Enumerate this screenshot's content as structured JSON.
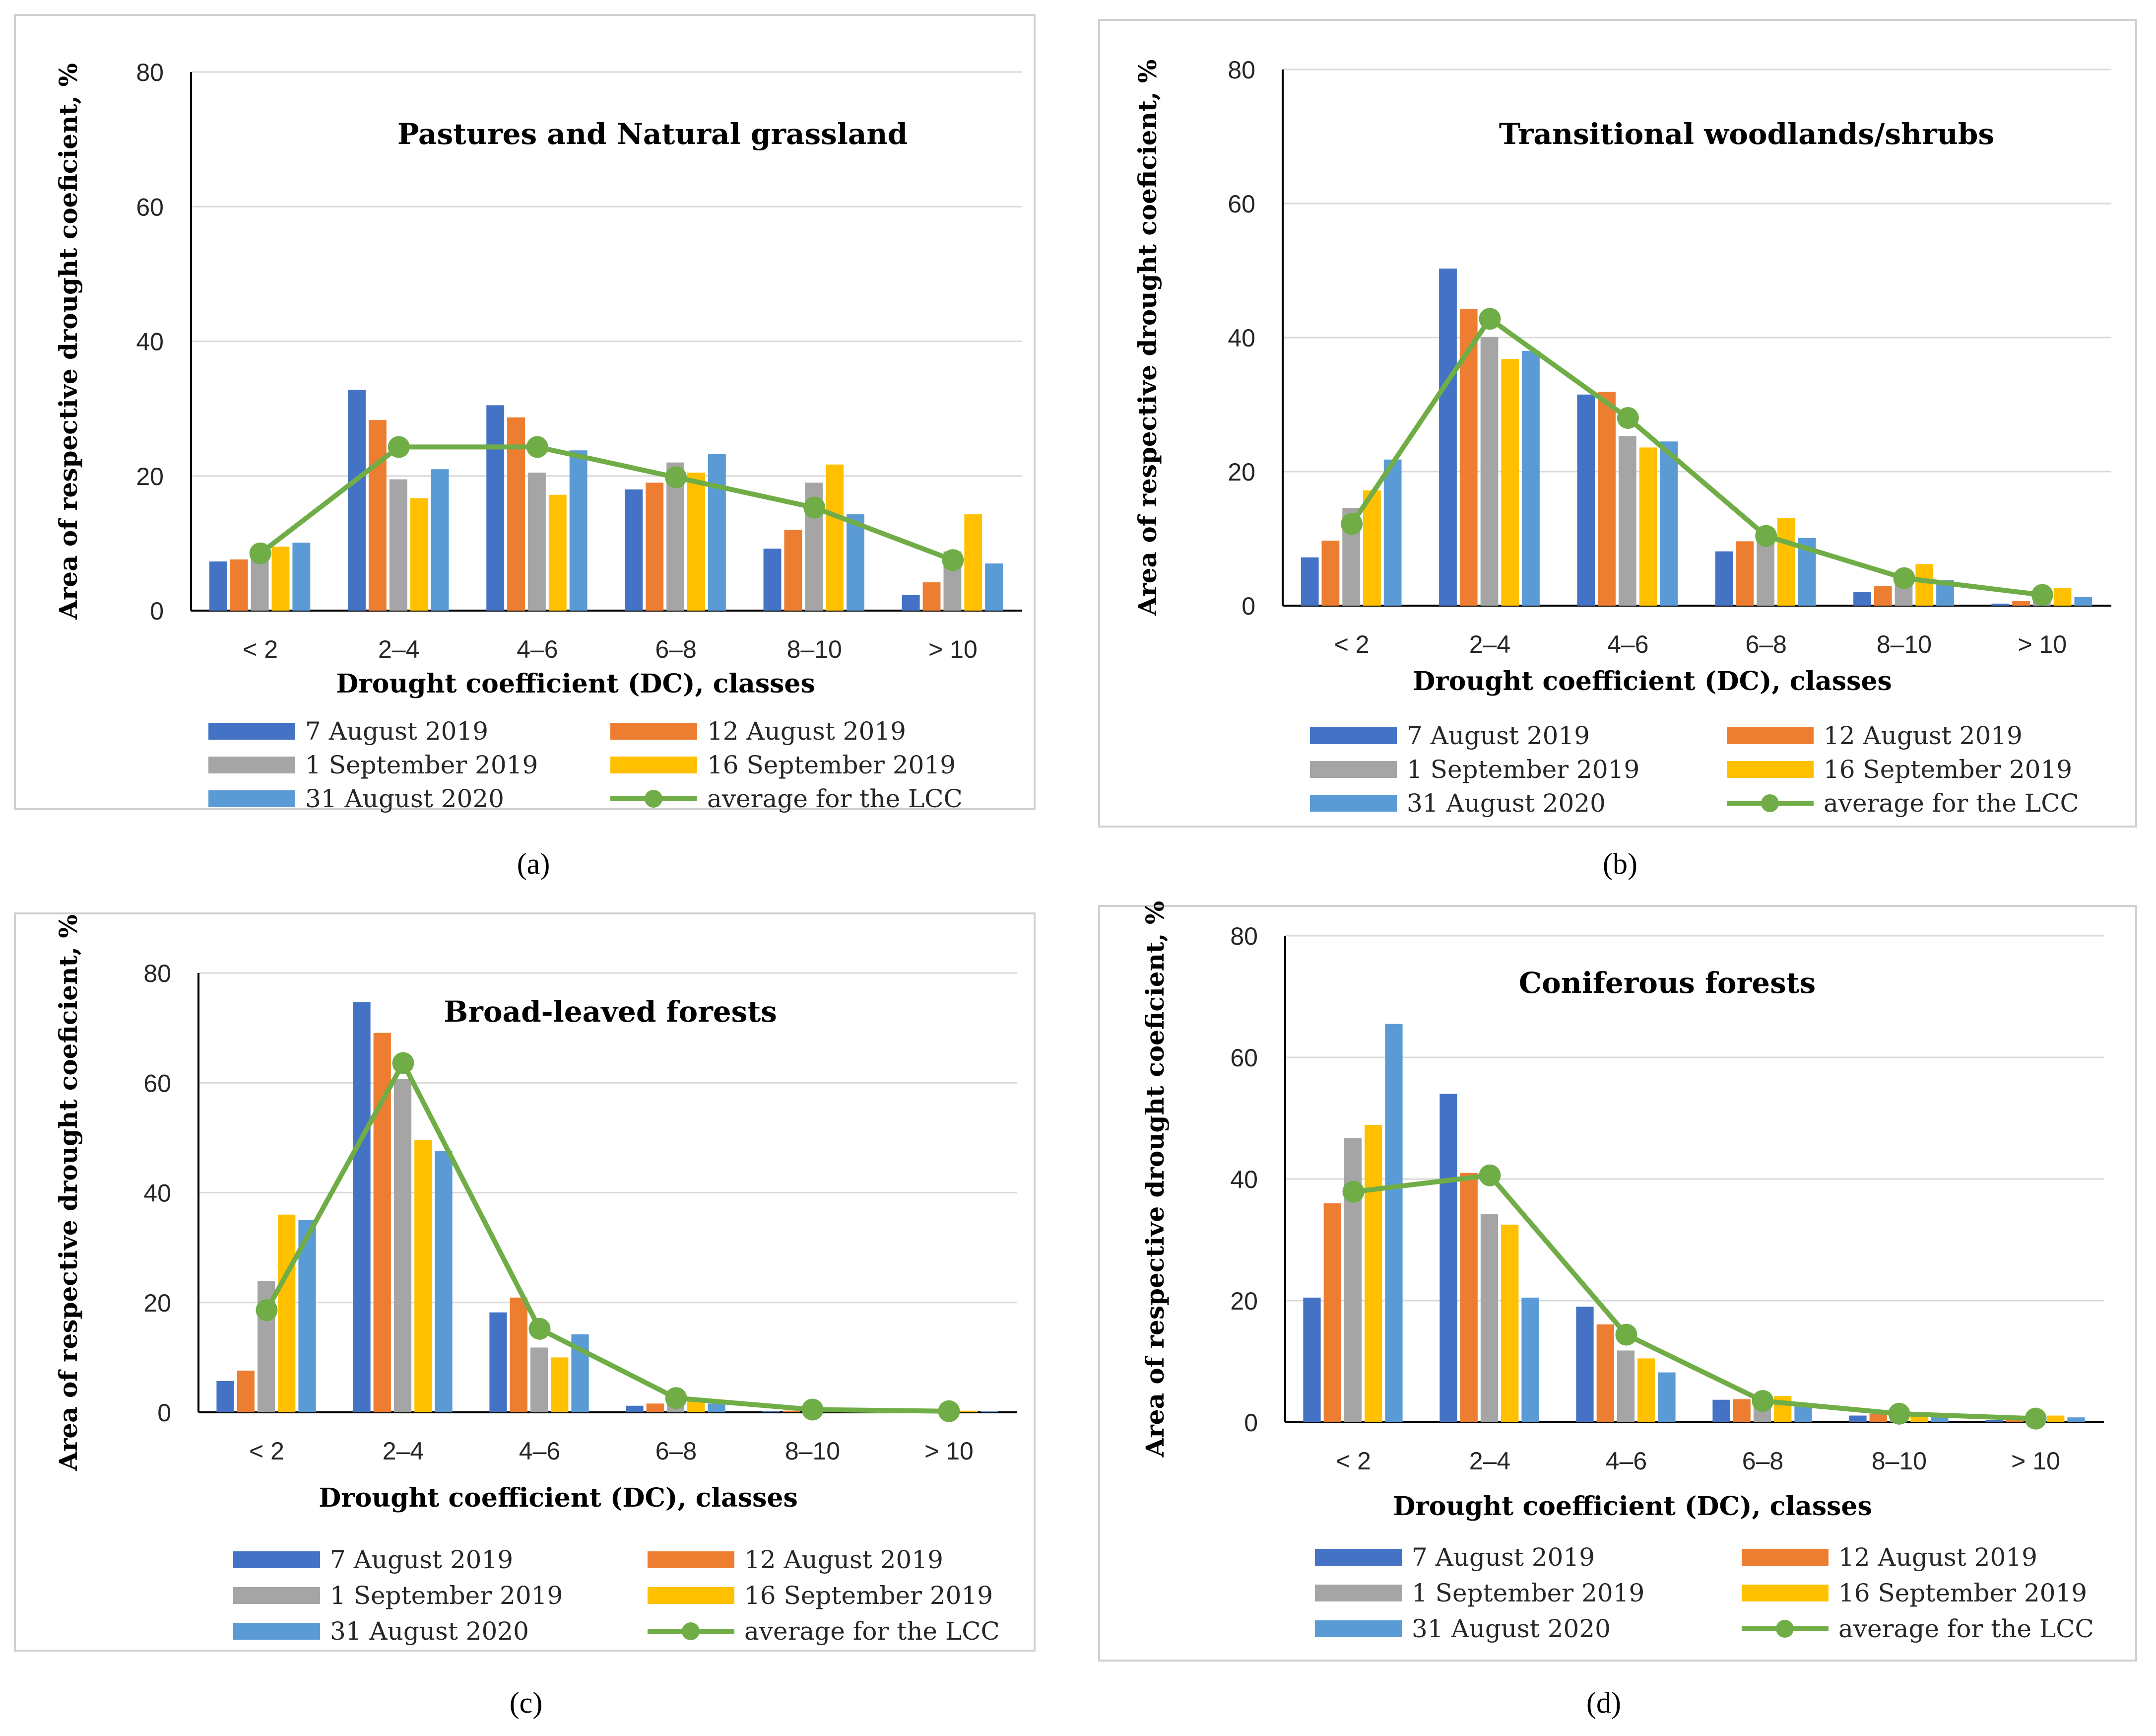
{
  "figure": {
    "legend_labels": [
      "7 August 2019",
      "12 August 2019",
      "1 September 2019",
      "16 September 2019",
      "31 August 2020",
      "average for the LCC"
    ],
    "series_colors": [
      "#4472C4",
      "#ED7D31",
      "#A5A5A5",
      "#FFC000",
      "#5B9BD5",
      "#70AD47"
    ]
  },
  "chart_data": [
    {
      "panel": "a",
      "type": "bar",
      "title": "Pastures and Natural grassland",
      "xlabel": "Drought coefficient (DC), classes",
      "ylabel": "Area of respective drought coeficient, %",
      "categories": [
        "< 2",
        "2–4",
        "4–6",
        "6–8",
        "8–10",
        "> 10"
      ],
      "ylim": [
        0,
        80
      ],
      "yticks": [
        "0",
        "20",
        "40",
        "60",
        "80"
      ],
      "series": [
        {
          "name": "7 August 2019",
          "values": [
            7.3,
            32.8,
            30.5,
            18,
            9.2,
            2.3
          ]
        },
        {
          "name": "12 August 2019",
          "values": [
            7.6,
            28.3,
            28.7,
            19,
            12,
            4.2
          ]
        },
        {
          "name": "1 September 2019",
          "values": [
            8.5,
            19.5,
            20.5,
            22,
            19,
            8.8
          ]
        },
        {
          "name": "16 September 2019",
          "values": [
            9.5,
            16.7,
            17.2,
            20.5,
            21.7,
            14.3
          ]
        },
        {
          "name": "31 August 2020",
          "values": [
            10.1,
            21,
            23.8,
            23.3,
            14.3,
            7
          ]
        }
      ],
      "line": {
        "name": "average for the LCC",
        "values": [
          8.5,
          24.3,
          24.3,
          19.8,
          15.3,
          7.5
        ]
      }
    },
    {
      "panel": "b",
      "type": "bar",
      "title": "Transitional woodlands/shrubs",
      "xlabel": "Drought coefficient (DC), classes",
      "ylabel": "Area of respective drought coeficient, %",
      "categories": [
        "< 2",
        "2–4",
        "4–6",
        "6–8",
        "8–10",
        "> 10"
      ],
      "ylim": [
        0,
        80
      ],
      "yticks": [
        "0",
        "20",
        "40",
        "60",
        "80"
      ],
      "series": [
        {
          "name": "7 August 2019",
          "values": [
            7.2,
            50.3,
            31.5,
            8.1,
            2,
            0.3
          ]
        },
        {
          "name": "12 August 2019",
          "values": [
            9.7,
            44.3,
            31.9,
            9.6,
            2.9,
            0.7
          ]
        },
        {
          "name": "1 September 2019",
          "values": [
            14.6,
            40.1,
            25.3,
            9.8,
            3.7,
            1.3
          ]
        },
        {
          "name": "16 September 2019",
          "values": [
            17.2,
            36.8,
            23.6,
            13.1,
            6.2,
            2.6
          ]
        },
        {
          "name": "31 August 2020",
          "values": [
            21.8,
            38,
            24.5,
            10.1,
            3.8,
            1.3
          ]
        }
      ],
      "line": {
        "name": "average for the LCC",
        "values": [
          12.2,
          42.8,
          28,
          10.4,
          4.1,
          1.6
        ]
      }
    },
    {
      "panel": "c",
      "type": "bar",
      "title": "Broad-leaved forests",
      "xlabel": "Drought coefficient (DC), classes",
      "ylabel": "Area of respective drought coeficient, %",
      "categories": [
        "< 2",
        "2–4",
        "4–6",
        "6–8",
        "8–10",
        "> 10"
      ],
      "ylim": [
        0,
        80
      ],
      "yticks": [
        "0",
        "20",
        "40",
        "60",
        "80"
      ],
      "series": [
        {
          "name": "7 August 2019",
          "values": [
            5.7,
            74.7,
            18.2,
            1.2,
            0.2,
            0
          ]
        },
        {
          "name": "12 August 2019",
          "values": [
            7.6,
            69.1,
            20.9,
            1.6,
            0.3,
            0.1
          ]
        },
        {
          "name": "1 September 2019",
          "values": [
            23.9,
            60.7,
            11.8,
            2.2,
            0.5,
            0.2
          ]
        },
        {
          "name": "16 September 2019",
          "values": [
            36,
            49.6,
            10,
            2.5,
            0.6,
            0.3
          ]
        },
        {
          "name": "31 August 2020",
          "values": [
            35,
            47.6,
            14.2,
            1.6,
            0.4,
            0.2
          ]
        }
      ],
      "line": {
        "name": "average for the LCC",
        "values": [
          18.6,
          63.6,
          15.2,
          2.6,
          0.5,
          0.2
        ]
      }
    },
    {
      "panel": "d",
      "type": "bar",
      "title": "Coniferous forests",
      "xlabel": "Drought coefficient (DC), classes",
      "ylabel": "Area of respective drought coeficient, %",
      "categories": [
        "< 2",
        "2–4",
        "4–6",
        "6–8",
        "8–10",
        "> 10"
      ],
      "ylim": [
        0,
        80
      ],
      "yticks": [
        "0",
        "20",
        "40",
        "60",
        "80"
      ],
      "series": [
        {
          "name": "7 August 2019",
          "values": [
            20.5,
            54,
            19,
            3.7,
            1.1,
            0.4
          ]
        },
        {
          "name": "12 August 2019",
          "values": [
            36,
            41,
            16.1,
            3.8,
            1.4,
            0.5
          ]
        },
        {
          "name": "1 September 2019",
          "values": [
            46.7,
            34.2,
            11.8,
            4.5,
            1.6,
            0.8
          ]
        },
        {
          "name": "16 September 2019",
          "values": [
            48.9,
            32.5,
            10.5,
            4.3,
            1.4,
            1.1
          ]
        },
        {
          "name": "31 August 2020",
          "values": [
            65.5,
            20.5,
            8.2,
            2.7,
            1.1,
            0.8
          ]
        }
      ],
      "line": {
        "name": "average for the LCC",
        "values": [
          37.9,
          40.6,
          14.4,
          3.5,
          1.4,
          0.6
        ]
      }
    }
  ],
  "panel_labels": [
    "(a)",
    "(b)",
    "(c)",
    "(d)"
  ]
}
